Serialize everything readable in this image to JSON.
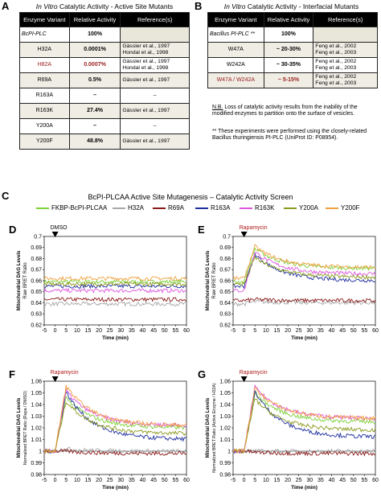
{
  "panelA": {
    "letter": "A",
    "title_italic": "In Vitro",
    "title_rest": " Catalytic Activity - Active Site Mutants",
    "headers": [
      "Enzyme Variant",
      "Relative Activity",
      "Reference(s)"
    ],
    "rows": [
      {
        "variant": "BcPI-PLC",
        "activity": "100%",
        "refs": [
          "",
          ""
        ],
        "red": false
      },
      {
        "variant": "H32A",
        "activity": "0.0001%",
        "refs": [
          "Gässler et al., 1997",
          "Hondal et al., 1998"
        ],
        "red": false
      },
      {
        "variant": "H82A",
        "activity": "0.0007%",
        "refs": [
          "Gässler et al., 1997",
          "Hondal et al., 1998"
        ],
        "red": true
      },
      {
        "variant": "R69A",
        "activity": "0.5%",
        "refs": [
          "Gässler et al., 1997",
          ""
        ],
        "red": false
      },
      {
        "variant": "R163A",
        "activity": "–",
        "refs": [
          "–",
          ""
        ],
        "red": false
      },
      {
        "variant": "R163K",
        "activity": "27.4%",
        "refs": [
          "Gässler et al., 1997",
          ""
        ],
        "red": false
      },
      {
        "variant": "Y200A",
        "activity": "–",
        "refs": [
          "–",
          ""
        ],
        "red": false
      },
      {
        "variant": "Y200F",
        "activity": "48.8%",
        "refs": [
          "Gässler et al., 1997",
          ""
        ],
        "red": false
      }
    ]
  },
  "panelB": {
    "letter": "B",
    "title_italic": "In Vitro",
    "title_rest": " Catalytic Activity - Interfacial Mutants",
    "headers": [
      "Enzyme Variant",
      "Relative Activity",
      "Reference(s)"
    ],
    "rows": [
      {
        "variant": "Bacillus PI-PLC **",
        "activity": "100%",
        "refs": [
          "",
          ""
        ],
        "red": false
      },
      {
        "variant": "W47A",
        "activity": "~ 20-30%",
        "refs": [
          "Feng et al., 2002",
          "Feng et al., 2003"
        ],
        "red": false
      },
      {
        "variant": "W242A",
        "activity": "~ 30-35%",
        "refs": [
          "Feng et al., 2002",
          "Feng et al., 2003"
        ],
        "red": false
      },
      {
        "variant": "W47A / W242A",
        "activity": "~ 5-15%",
        "refs": [
          "Feng et al., 2002",
          "Feng et al., 2003"
        ],
        "red": true
      }
    ],
    "note_nb": "N.B.",
    "note1": " Loss of catalytic activity results from the inability of the modified enzymes to partition onto the surface of vesicles.",
    "note2": "** These experiments were performed using the closely-related Bacillus thuringiensis PI-PLC (UniProt ID: P08954)."
  },
  "panelC": {
    "letter": "C",
    "title": "BcPI-PLCAA Active Site Mutagenesis – Catalytic Activity Screen",
    "legend": [
      {
        "label": "FKBP-BcPI-PLCAA",
        "color": "#7fd03a"
      },
      {
        "label": "H32A",
        "color": "#a8a8a8"
      },
      {
        "label": "R69A",
        "color": "#8b1a1a"
      },
      {
        "label": "R163A",
        "color": "#1f2e9e"
      },
      {
        "label": "R163K",
        "color": "#dd55dd"
      },
      {
        "label": "Y200A",
        "color": "#8c9a1e"
      },
      {
        "label": "Y200F",
        "color": "#f0a040"
      }
    ]
  },
  "panelD": {
    "letter": "D",
    "trigger": "DMSO",
    "ylabel1": "Mitochondrial DAG Levels",
    "ylabel2": "Raw BRET Ratio",
    "xlabel": "Time (min)"
  },
  "panelE": {
    "letter": "E",
    "trigger": "Rapamycin",
    "ylabel1": "Mitochondrial DAG Levels",
    "ylabel2": "Raw BRET Ratio",
    "xlabel": "Time (min)"
  },
  "panelF": {
    "letter": "F",
    "trigger": "Rapamycin",
    "ylabel1": "Mitochondrial DAG Levels",
    "ylabel2": "Normalized BRET Ratio (Rapa / DMSO)",
    "xlabel": "Time (min)"
  },
  "panelG": {
    "letter": "G",
    "trigger": "Rapamycin",
    "ylabel1": "Mitochondrial DAG Levels",
    "ylabel2": "Normalized BRET Ratio (Active Enzyme / H32A)",
    "xlabel": "Time (min)"
  },
  "axes": {
    "raw_y_ticks": [
      "0.7",
      "0.69",
      "0.68",
      "0.67",
      "0.66",
      "0.65",
      "0.64",
      "0.63",
      "0.62"
    ],
    "norm_y_ticks": [
      "1.06",
      "1.05",
      "1.04",
      "1.03",
      "1.02",
      "1.01",
      "1",
      "0.99",
      "0.98"
    ],
    "x_ticks": [
      "-5",
      "0",
      "5",
      "10",
      "15",
      "20",
      "25",
      "30",
      "35",
      "40",
      "45",
      "50",
      "55",
      "60"
    ]
  },
  "chart_data": [
    {
      "type": "line",
      "panel": "D",
      "ylim": [
        0.62,
        0.7
      ],
      "xlim": [
        -5,
        60
      ],
      "series": [
        {
          "name": "FKBP-BcPI-PLCAA",
          "level": 0.659
        },
        {
          "name": "H32A",
          "level": 0.639
        },
        {
          "name": "R69A",
          "level": 0.643
        },
        {
          "name": "R163A",
          "level": 0.655
        },
        {
          "name": "R163K",
          "level": 0.651
        },
        {
          "name": "Y200A",
          "level": 0.657
        },
        {
          "name": "Y200F",
          "level": 0.662
        }
      ]
    },
    {
      "type": "line",
      "panel": "E",
      "ylim": [
        0.62,
        0.7
      ],
      "xlim": [
        -5,
        60
      ],
      "series": [
        {
          "name": "FKBP-BcPI-PLCAA",
          "baseline": 0.659,
          "peak": 0.689,
          "end": 0.671
        },
        {
          "name": "H32A",
          "baseline": 0.639,
          "peak": 0.641,
          "end": 0.64
        },
        {
          "name": "R69A",
          "baseline": 0.642,
          "peak": 0.643,
          "end": 0.642
        },
        {
          "name": "R163A",
          "baseline": 0.655,
          "peak": 0.684,
          "end": 0.66
        },
        {
          "name": "R163K",
          "baseline": 0.651,
          "peak": 0.686,
          "end": 0.666
        },
        {
          "name": "Y200A",
          "baseline": 0.657,
          "peak": 0.681,
          "end": 0.663
        },
        {
          "name": "Y200F",
          "baseline": 0.662,
          "peak": 0.691,
          "end": 0.672
        }
      ]
    },
    {
      "type": "line",
      "panel": "F",
      "ylim": [
        0.98,
        1.06
      ],
      "xlim": [
        -5,
        60
      ],
      "series": [
        {
          "name": "FKBP-BcPI-PLCAA",
          "baseline": 1.0,
          "peak": 1.046,
          "end": 1.02
        },
        {
          "name": "H32A",
          "baseline": 1.0,
          "peak": 1.002,
          "end": 1.0
        },
        {
          "name": "R69A",
          "baseline": 1.0,
          "peak": 1.0,
          "end": 0.998
        },
        {
          "name": "R163A",
          "baseline": 1.0,
          "peak": 1.051,
          "end": 1.01
        },
        {
          "name": "R163K",
          "baseline": 1.0,
          "peak": 1.052,
          "end": 1.022
        },
        {
          "name": "Y200A",
          "baseline": 1.0,
          "peak": 1.043,
          "end": 1.015
        },
        {
          "name": "Y200F",
          "baseline": 1.0,
          "peak": 1.056,
          "end": 1.022
        }
      ]
    },
    {
      "type": "line",
      "panel": "G",
      "ylim": [
        0.98,
        1.06
      ],
      "xlim": [
        -5,
        60
      ],
      "series": [
        {
          "name": "FKBP-BcPI-PLCAA",
          "baseline": 1.0,
          "peak": 1.05,
          "end": 1.025
        },
        {
          "name": "H32A",
          "baseline": 1.0,
          "peak": 1.0,
          "end": 1.0
        },
        {
          "name": "R69A",
          "baseline": 1.0,
          "peak": 0.999,
          "end": 0.998
        },
        {
          "name": "R163A",
          "baseline": 1.0,
          "peak": 1.051,
          "end": 1.012
        },
        {
          "name": "R163K",
          "baseline": 1.0,
          "peak": 1.055,
          "end": 1.028
        },
        {
          "name": "Y200A",
          "baseline": 1.0,
          "peak": 1.045,
          "end": 1.018
        },
        {
          "name": "Y200F",
          "baseline": 1.0,
          "peak": 1.054,
          "end": 1.028
        }
      ]
    }
  ]
}
